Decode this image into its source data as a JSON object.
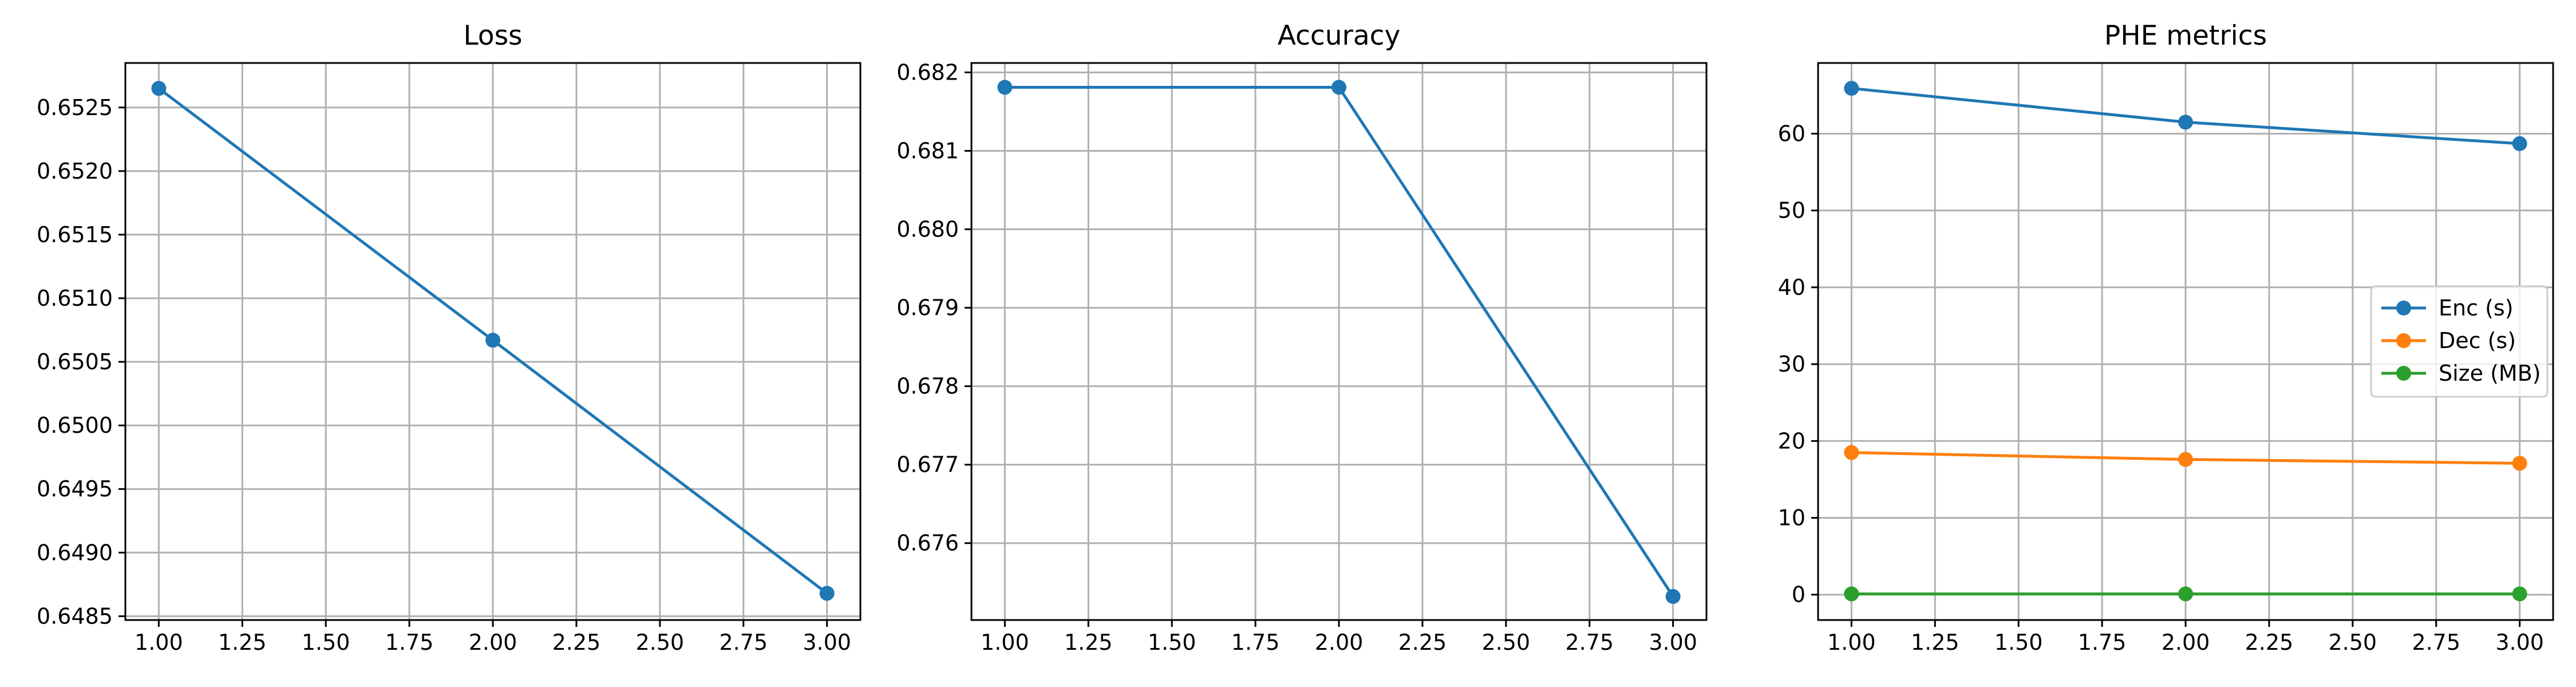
{
  "chart_data": [
    {
      "type": "line",
      "title": "Loss",
      "xlabel": "",
      "ylabel": "",
      "xlim": [
        0.9,
        3.1
      ],
      "ylim": [
        0.64847,
        0.65285
      ],
      "grid": true,
      "xticks": [
        1.0,
        1.25,
        1.5,
        1.75,
        2.0,
        2.25,
        2.5,
        2.75,
        3.0
      ],
      "xtick_labels": [
        "1.00",
        "1.25",
        "1.50",
        "1.75",
        "2.00",
        "2.25",
        "2.50",
        "2.75",
        "3.00"
      ],
      "yticks": [
        0.6485,
        0.649,
        0.6495,
        0.65,
        0.6505,
        0.651,
        0.6515,
        0.652,
        0.6525
      ],
      "ytick_labels": [
        "0.6485",
        "0.6490",
        "0.6495",
        "0.6500",
        "0.6505",
        "0.6510",
        "0.6515",
        "0.6520",
        "0.6525"
      ],
      "series": [
        {
          "color": "#1f77b4",
          "x": [
            1,
            2,
            3
          ],
          "values": [
            0.65265,
            0.65067,
            0.64868
          ]
        }
      ]
    },
    {
      "type": "line",
      "title": "Accuracy",
      "xlabel": "",
      "ylabel": "",
      "xlim": [
        0.9,
        3.1
      ],
      "ylim": [
        0.67502,
        0.68212
      ],
      "grid": true,
      "xticks": [
        1.0,
        1.25,
        1.5,
        1.75,
        2.0,
        2.25,
        2.5,
        2.75,
        3.0
      ],
      "xtick_labels": [
        "1.00",
        "1.25",
        "1.50",
        "1.75",
        "2.00",
        "2.25",
        "2.50",
        "2.75",
        "3.00"
      ],
      "yticks": [
        0.676,
        0.677,
        0.678,
        0.679,
        0.68,
        0.681,
        0.682
      ],
      "ytick_labels": [
        "0.676",
        "0.677",
        "0.678",
        "0.679",
        "0.680",
        "0.681",
        "0.682"
      ],
      "series": [
        {
          "color": "#1f77b4",
          "x": [
            1,
            2,
            3
          ],
          "values": [
            0.68181,
            0.68181,
            0.67532
          ]
        }
      ]
    },
    {
      "type": "line",
      "title": "PHE metrics",
      "xlabel": "",
      "ylabel": "",
      "xlim": [
        0.9,
        3.1
      ],
      "ylim": [
        -3.3,
        69.2
      ],
      "grid": true,
      "legend_position": "center-right",
      "xticks": [
        1.0,
        1.25,
        1.5,
        1.75,
        2.0,
        2.25,
        2.5,
        2.75,
        3.0
      ],
      "xtick_labels": [
        "1.00",
        "1.25",
        "1.50",
        "1.75",
        "2.00",
        "2.25",
        "2.50",
        "2.75",
        "3.00"
      ],
      "yticks": [
        0,
        10,
        20,
        30,
        40,
        50,
        60
      ],
      "ytick_labels": [
        "0",
        "10",
        "20",
        "30",
        "40",
        "50",
        "60"
      ],
      "series": [
        {
          "name": "Enc (s)",
          "color": "#1f77b4",
          "x": [
            1,
            2,
            3
          ],
          "values": [
            65.9,
            61.5,
            58.7
          ]
        },
        {
          "name": "Dec (s)",
          "color": "#ff7f0e",
          "x": [
            1,
            2,
            3
          ],
          "values": [
            18.5,
            17.6,
            17.1
          ]
        },
        {
          "name": "Size (MB)",
          "color": "#2ca02c",
          "x": [
            1,
            2,
            3
          ],
          "values": [
            0.1,
            0.1,
            0.1
          ]
        }
      ]
    }
  ]
}
